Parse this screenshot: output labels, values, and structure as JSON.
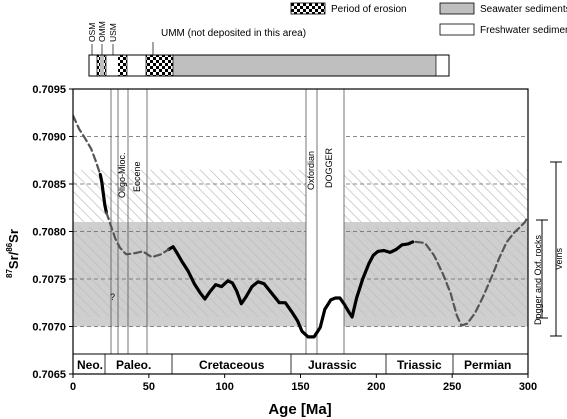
{
  "legend": {
    "erosion": "Period of erosion",
    "seawater": "Seawater sediments",
    "freshwater": "Freshwater sediments",
    "colors": {
      "seawater": "#bfbfbf",
      "freshwater": "#ffffff"
    }
  },
  "column_labels": {
    "osm": "OSM",
    "omm": "OMM",
    "usm": "USM",
    "umm": "UMM (not deposited in this area)"
  },
  "period_labels": [
    "Oligo-Mioc.",
    "Eocene",
    "Oxfordian",
    "DOGGER"
  ],
  "right_labels": {
    "veins": "Veins",
    "dogger": "Dogger and Oxf. rocks"
  },
  "eras": [
    "Neo.",
    "Paleo.",
    "Cretaceous",
    "Jurassic",
    "Triassic",
    "Permian"
  ],
  "question_mark": "?",
  "chart_data": {
    "type": "line",
    "xlabel": "Age [Ma]",
    "ylabel_main": "Sr/",
    "ylabel_sup1": "87",
    "ylabel_sup2": "86",
    "ylabel_tail": "Sr",
    "xlim": [
      0,
      300
    ],
    "ylim": [
      0.7065,
      0.7095
    ],
    "xticks": [
      0,
      50,
      100,
      150,
      200,
      250,
      300
    ],
    "yticks": [
      "0.7065",
      "0.7070",
      "0.7075",
      "0.7080",
      "0.7085",
      "0.7090",
      "0.7095"
    ],
    "grid": "horizontal dashed",
    "bands": {
      "hatched_upper": [
        0.7081,
        0.70865
      ],
      "gray": [
        0.707,
        0.7081
      ],
      "hatched_lower": [
        0.7071,
        0.70805
      ]
    },
    "series": [
      {
        "style": "solid",
        "segments": [
          [
            [
              18,
              0.7086
            ],
            [
              19,
              0.70852
            ],
            [
              20,
              0.7084
            ],
            [
              21,
              0.70828
            ],
            [
              22,
              0.7082
            ]
          ],
          [
            [
              63,
              0.70781
            ],
            [
              66,
              0.70784
            ],
            [
              68,
              0.70779
            ],
            [
              72,
              0.70768
            ],
            [
              76,
              0.70758
            ],
            [
              80,
              0.70745
            ],
            [
              84,
              0.70735
            ],
            [
              87,
              0.70729
            ],
            [
              90,
              0.70736
            ],
            [
              94,
              0.70744
            ],
            [
              98,
              0.70742
            ],
            [
              102,
              0.70748
            ],
            [
              105,
              0.70746
            ],
            [
              108,
              0.70737
            ],
            [
              111,
              0.70724
            ],
            [
              114,
              0.70731
            ],
            [
              118,
              0.70742
            ],
            [
              122,
              0.70747
            ],
            [
              126,
              0.70745
            ],
            [
              131,
              0.70735
            ],
            [
              136,
              0.70725
            ],
            [
              140,
              0.70725
            ],
            [
              144,
              0.70716
            ],
            [
              148,
              0.70706
            ],
            [
              151,
              0.70695
            ],
            [
              155,
              0.70689
            ],
            [
              159,
              0.70689
            ],
            [
              163,
              0.70699
            ],
            [
              166,
              0.70718
            ],
            [
              170,
              0.70728
            ],
            [
              173,
              0.7073
            ],
            [
              176,
              0.7073
            ],
            [
              179,
              0.70723
            ],
            [
              182,
              0.70715
            ],
            [
              184,
              0.7071
            ],
            [
              187,
              0.7073
            ],
            [
              191,
              0.7075
            ],
            [
              195,
              0.70766
            ],
            [
              198,
              0.70775
            ],
            [
              201,
              0.70779
            ],
            [
              205,
              0.7078
            ],
            [
              209,
              0.70778
            ],
            [
              213,
              0.70781
            ],
            [
              217,
              0.70786
            ],
            [
              221,
              0.70787
            ],
            [
              224,
              0.70789
            ]
          ]
        ]
      },
      {
        "style": "dashed",
        "segments": [
          [
            [
              0,
              0.70922
            ],
            [
              4,
              0.70908
            ],
            [
              8,
              0.70898
            ],
            [
              12,
              0.70887
            ],
            [
              15,
              0.70874
            ],
            [
              18,
              0.7086
            ]
          ],
          [
            [
              22,
              0.7082
            ],
            [
              25,
              0.70806
            ],
            [
              28,
              0.70792
            ],
            [
              31,
              0.70783
            ],
            [
              35,
              0.70776
            ],
            [
              40,
              0.70777
            ],
            [
              46,
              0.70779
            ],
            [
              52,
              0.70773
            ],
            [
              58,
              0.70776
            ],
            [
              63,
              0.70781
            ]
          ],
          [
            [
              226,
              0.70789
            ],
            [
              232,
              0.70788
            ],
            [
              238,
              0.70775
            ],
            [
              244,
              0.70755
            ],
            [
              249,
              0.70735
            ],
            [
              253,
              0.70712
            ],
            [
              256,
              0.70701
            ],
            [
              260,
              0.70703
            ],
            [
              265,
              0.70714
            ],
            [
              270,
              0.7073
            ],
            [
              276,
              0.70752
            ],
            [
              281,
              0.70772
            ],
            [
              286,
              0.70789
            ],
            [
              291,
              0.70799
            ],
            [
              295,
              0.70805
            ],
            [
              298,
              0.7081
            ],
            [
              300,
              0.70816
            ]
          ]
        ]
      }
    ]
  }
}
